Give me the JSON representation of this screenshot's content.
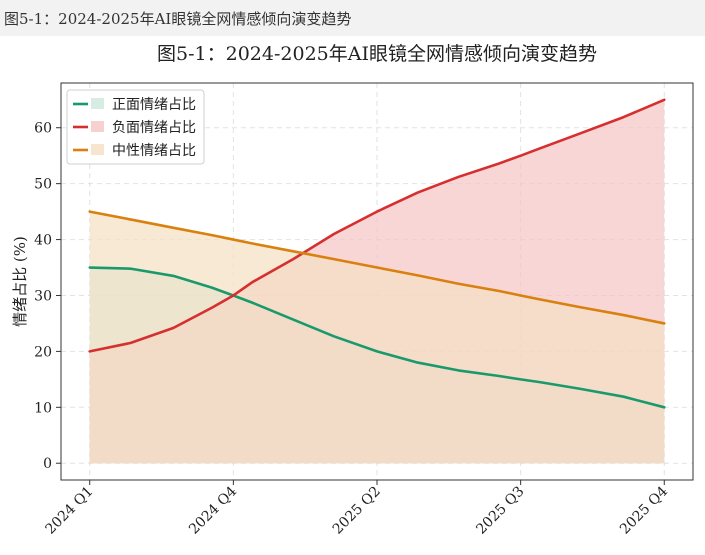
{
  "figure_caption": "图5-1：2024-2025年AI眼镜全网情感倾向演变趋势",
  "chart_data": {
    "type": "area",
    "title": "图5-1：2024-2025年AI眼镜全网情感倾向演变趋势",
    "xlabel": "",
    "ylabel": "情绪占比 (%)",
    "x_tick_labels": [
      "2024 Q1",
      "2024 Q4",
      "2025 Q2",
      "2025 Q3",
      "2025 Q4"
    ],
    "x_ticks": [
      0,
      3,
      6,
      9,
      12
    ],
    "xlim": [
      -0.6,
      12.6
    ],
    "ylim": [
      -3,
      68
    ],
    "y_ticks": [
      0,
      10,
      20,
      30,
      40,
      50,
      60
    ],
    "grid": true,
    "legend_position": "top-left",
    "x": [
      0,
      0.85,
      1.75,
      2.55,
      3.0,
      3.4,
      4.25,
      5.1,
      6.0,
      6.85,
      7.7,
      8.55,
      9.0,
      9.4,
      10.25,
      11.15,
      12.0
    ],
    "series": [
      {
        "name": "正面情绪占比",
        "color": "#1a9a6c",
        "fill": "#cde9dd",
        "values": [
          35.0,
          34.8,
          33.5,
          31.4,
          30.0,
          28.7,
          25.7,
          22.7,
          20.0,
          18.0,
          16.6,
          15.6,
          15.0,
          14.5,
          13.3,
          11.9,
          10.0
        ]
      },
      {
        "name": "负面情绪占比",
        "color": "#d62f2f",
        "fill": "#f5c4c4",
        "values": [
          20.0,
          21.5,
          24.2,
          27.8,
          30.0,
          32.4,
          36.5,
          41.0,
          45.0,
          48.4,
          51.2,
          53.6,
          55.0,
          56.3,
          59.0,
          61.9,
          65.0
        ]
      },
      {
        "name": "中性情绪占比",
        "color": "#d9800f",
        "fill": "#f5dfc3",
        "values": [
          45.0,
          43.6,
          42.1,
          40.8,
          40.0,
          39.3,
          37.9,
          36.5,
          35.0,
          33.6,
          32.1,
          30.8,
          30.0,
          29.3,
          27.9,
          26.5,
          25.0
        ]
      }
    ]
  }
}
